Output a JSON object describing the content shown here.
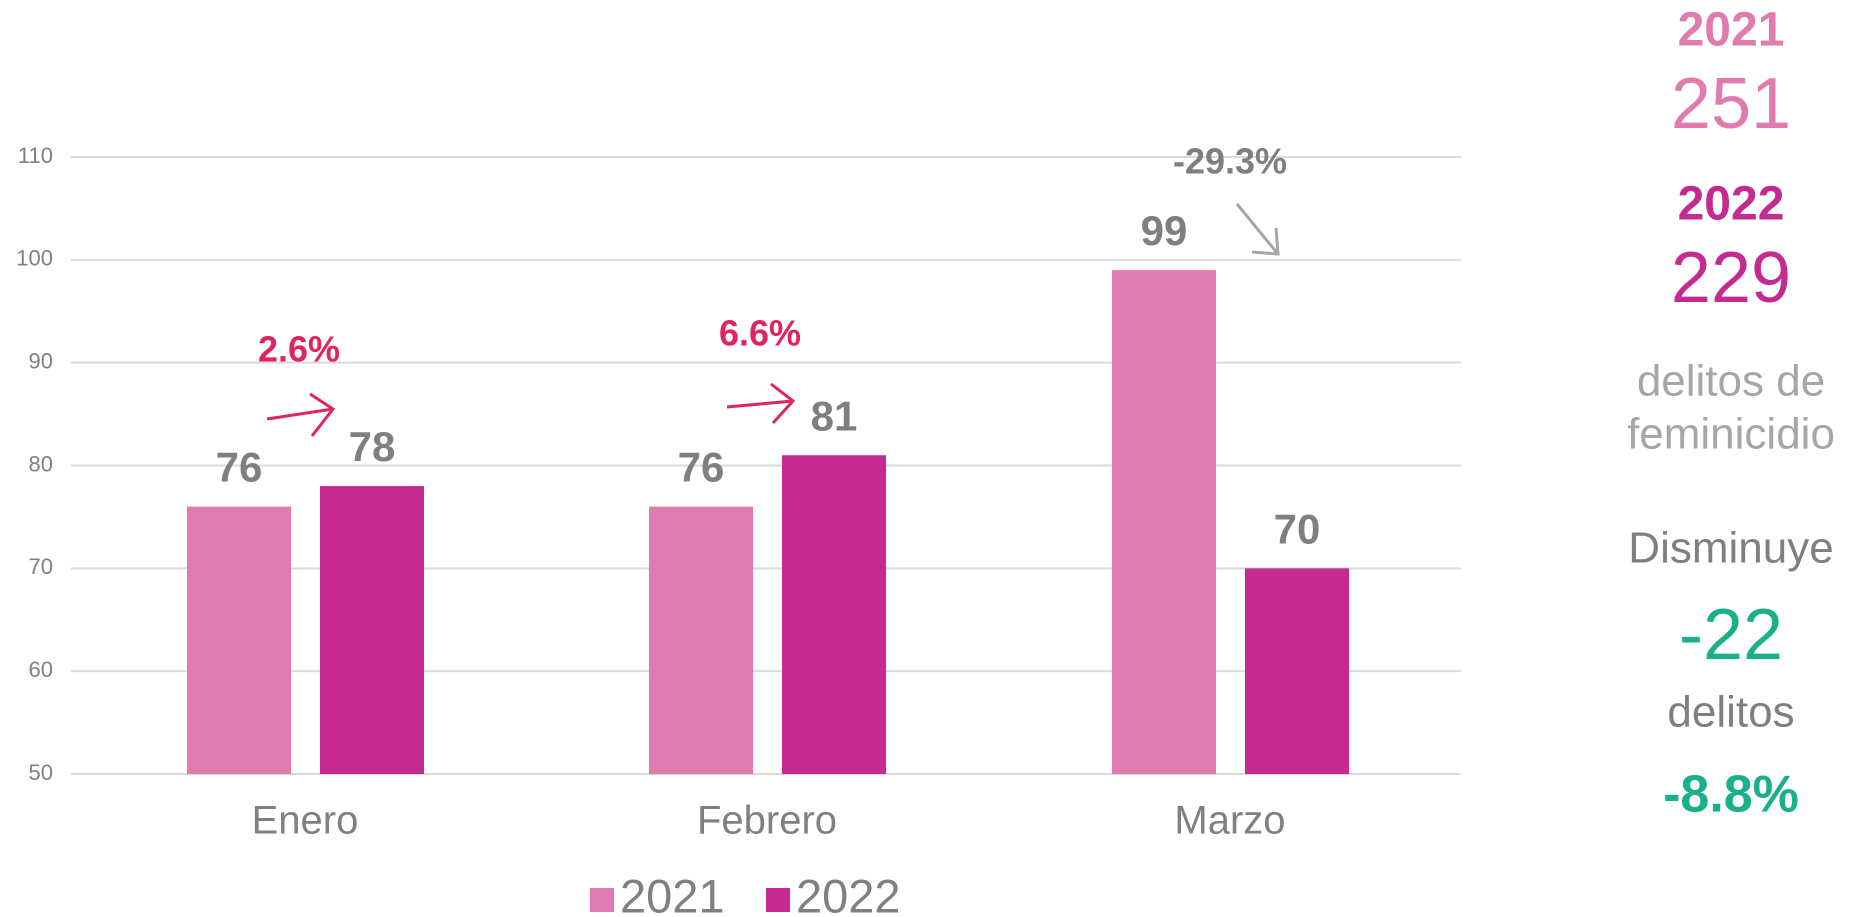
{
  "chart_data": {
    "type": "bar",
    "categories": [
      "Enero",
      "Febrero",
      "Marzo"
    ],
    "series": [
      {
        "name": "2021",
        "color": "#e07bb0",
        "values": [
          76,
          76,
          99
        ]
      },
      {
        "name": "2022",
        "color": "#c42a8f",
        "values": [
          78,
          81,
          70
        ]
      }
    ],
    "ylim": [
      50,
      110
    ],
    "yticks": [
      50,
      60,
      70,
      80,
      90,
      100,
      110
    ],
    "grid": true,
    "annotations": [
      "2.6%",
      "6.6%",
      "-29.3%"
    ]
  },
  "summary": {
    "label_2021": "2021",
    "total_2021": "251",
    "label_2022": "2022",
    "total_2022": "229",
    "description_line1": "delitos de",
    "description_line2": "feminicidio",
    "change_label": "Disminuye",
    "change_value": "-22",
    "change_unit": "delitos",
    "change_percent": "-8.8%"
  }
}
